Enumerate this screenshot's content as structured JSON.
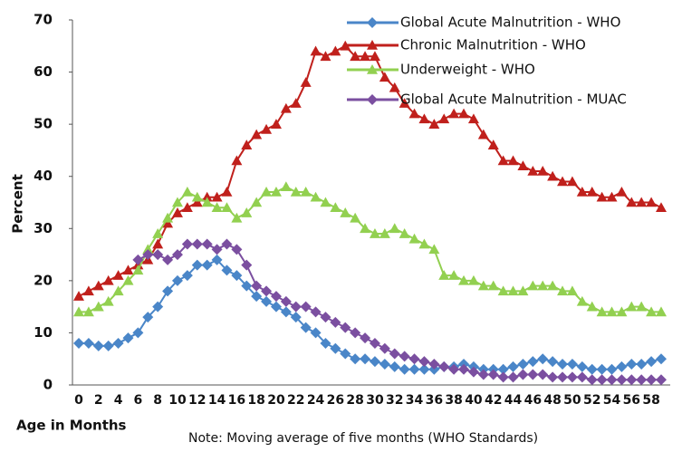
{
  "chart_data": {
    "type": "line",
    "y_label": "Percent",
    "x_label": "Age in Months",
    "note": "Note: Moving average of five months  (WHO Standards)",
    "categories": [
      0,
      null,
      2,
      null,
      4,
      null,
      6,
      null,
      8,
      null,
      10,
      null,
      12,
      null,
      14,
      null,
      16,
      null,
      18,
      null,
      20,
      null,
      22,
      null,
      24,
      null,
      26,
      null,
      28,
      null,
      30,
      null,
      32,
      null,
      34,
      null,
      36,
      null,
      38,
      null,
      40,
      null,
      42,
      null,
      44,
      null,
      46,
      null,
      48,
      null,
      50,
      null,
      52,
      null,
      54,
      null,
      56,
      null,
      58,
      null
    ],
    "ylim": [
      0,
      70
    ],
    "yticks": [
      0,
      10,
      20,
      30,
      40,
      50,
      60,
      70
    ],
    "legend": "top-right",
    "series": [
      {
        "name": "Global Acute Malnutrition - WHO",
        "color": "#4a86c8",
        "marker": "diamond",
        "values": [
          8,
          8,
          7.5,
          7.5,
          8,
          9,
          10,
          13,
          15,
          18,
          20,
          21,
          23,
          23,
          24,
          22,
          21,
          19,
          17,
          16,
          15,
          14,
          13,
          11,
          10,
          8,
          7,
          6,
          5,
          5,
          4.5,
          4,
          3.5,
          3,
          3,
          3,
          3,
          3.5,
          3.5,
          4,
          3.5,
          3,
          3,
          3,
          3.5,
          4,
          4.5,
          5,
          4.5,
          4,
          4,
          3.5,
          3,
          3,
          3,
          3.5,
          4,
          4,
          4.5,
          5
        ]
      },
      {
        "name": "Chronic Malnutrition - WHO",
        "color": "#c0201c",
        "marker": "triangle",
        "values": [
          17,
          18,
          19,
          20,
          21,
          22,
          23,
          24,
          27,
          31,
          33,
          34,
          35,
          36,
          36,
          37,
          43,
          46,
          48,
          49,
          50,
          53,
          54,
          58,
          64,
          63,
          64,
          65,
          63,
          63,
          63,
          59,
          57,
          54,
          52,
          51,
          50,
          51,
          52,
          52,
          51,
          48,
          46,
          43,
          43,
          42,
          41,
          41,
          40,
          39,
          39,
          37,
          37,
          36,
          36,
          37,
          35,
          35,
          35,
          34
        ]
      },
      {
        "name": "Underweight - WHO",
        "color": "#92d050",
        "marker": "triangle",
        "values": [
          14,
          14,
          15,
          16,
          18,
          20,
          22,
          26,
          29,
          32,
          35,
          37,
          36,
          35,
          34,
          34,
          32,
          33,
          35,
          37,
          37,
          38,
          37,
          37,
          36,
          35,
          34,
          33,
          32,
          30,
          29,
          29,
          30,
          29,
          28,
          27,
          26,
          21,
          21,
          20,
          20,
          19,
          19,
          18,
          18,
          18,
          19,
          19,
          19,
          18,
          18,
          16,
          15,
          14,
          14,
          14,
          15,
          15,
          14,
          14
        ]
      },
      {
        "name": "Global Acute Malnutrition - MUAC",
        "color": "#7b4fa0",
        "marker": "diamond",
        "values": [
          null,
          null,
          null,
          null,
          null,
          null,
          24,
          25,
          25,
          24,
          25,
          27,
          27,
          27,
          26,
          27,
          26,
          23,
          19,
          18,
          17,
          16,
          15,
          15,
          14,
          13,
          12,
          11,
          10,
          9,
          8,
          7,
          6,
          5.5,
          5,
          4.5,
          4,
          3.5,
          3,
          3,
          2.5,
          2,
          2,
          1.5,
          1.5,
          2,
          2,
          2,
          1.5,
          1.5,
          1.5,
          1.5,
          1,
          1,
          1,
          1,
          1,
          1,
          1,
          1
        ]
      }
    ]
  }
}
